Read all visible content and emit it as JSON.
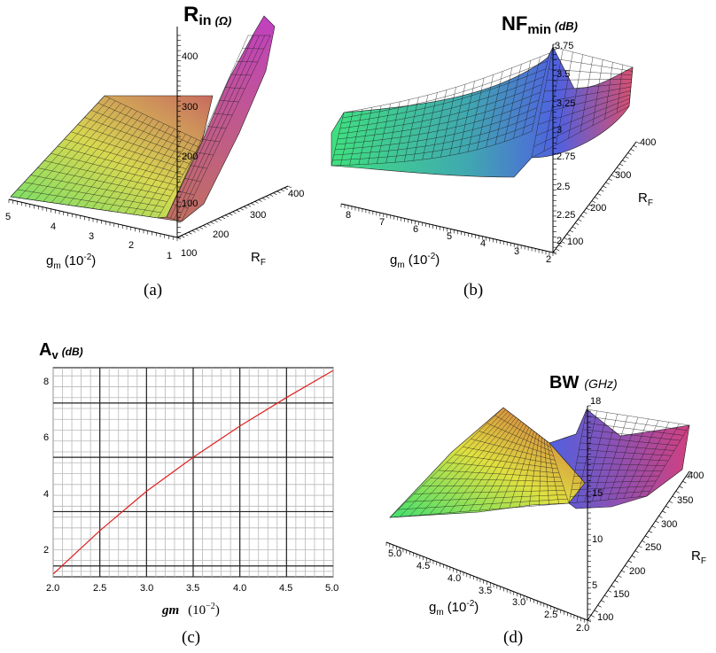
{
  "chart_data": [
    {
      "id": "a",
      "type": "surface3d",
      "title": "R",
      "title_sub": "in",
      "title_unit": "(Ω)",
      "caption": "(a)",
      "x_axis": {
        "label": "g",
        "label_sub": "m",
        "label_suffix": "(10",
        "label_sup": "-2",
        "label_close": ")",
        "ticks": [
          "5",
          "4",
          "3",
          "2",
          "1"
        ]
      },
      "y_axis": {
        "label": "R",
        "label_sub": "F",
        "ticks": [
          "100",
          "200",
          "300",
          "400"
        ]
      },
      "z_axis": {
        "ticks": [
          "100",
          "200",
          "300",
          "400"
        ]
      },
      "colors": {
        "low": "#6ee06a",
        "mid": "#d8d850",
        "high": "#c040c0"
      }
    },
    {
      "id": "b",
      "type": "surface3d",
      "title": "NF",
      "title_sub": "min",
      "title_unit": "(dB)",
      "caption": "(b)",
      "x_axis": {
        "label": "g",
        "label_sub": "m",
        "label_suffix": "(10",
        "label_sup": "-2",
        "label_close": ")",
        "ticks": [
          "8",
          "7",
          "6",
          "5",
          "4",
          "3",
          "2"
        ]
      },
      "y_axis": {
        "label": "R",
        "label_sub": "F",
        "ticks": [
          "100",
          "200",
          "300",
          "400"
        ]
      },
      "z_axis": {
        "ticks": [
          "2",
          "2.25",
          "2.5",
          "2.75",
          "3",
          "3.25",
          "3.5",
          "3.75"
        ]
      },
      "colors": {
        "low": "#50e080",
        "mid": "#6070e0",
        "high": "#d84060"
      }
    },
    {
      "id": "c",
      "type": "line",
      "title": "A",
      "title_sub": "v",
      "title_unit": "(dB)",
      "caption": "(c)",
      "xlabel": "gm",
      "xlabel_unit": "(10",
      "xlabel_sup": "−2",
      "xlabel_close": ")",
      "xlim": [
        2.0,
        5.0
      ],
      "ylim": [
        0.8,
        8.5
      ],
      "x_ticks": [
        "2.0",
        "2.5",
        "3.0",
        "3.5",
        "4.0",
        "4.5",
        "5.0"
      ],
      "y_ticks": [
        "2",
        "4",
        "6",
        "8"
      ],
      "series": [
        {
          "color": "#e02020",
          "x": [
            2.0,
            2.5,
            3.0,
            3.5,
            4.0,
            4.5,
            5.0
          ],
          "y": [
            0.9,
            2.5,
            3.95,
            5.2,
            6.35,
            7.4,
            8.4
          ]
        }
      ]
    },
    {
      "id": "d",
      "type": "surface3d",
      "title": "BW",
      "title_unit": "(GHz)",
      "caption": "(d)",
      "x_axis": {
        "label": "g",
        "label_sub": "m",
        "label_suffix": "(10",
        "label_sup": "-2",
        "label_close": ")",
        "ticks": [
          "5.0",
          "4.5",
          "4.0",
          "3.5",
          "3.0",
          "2.5",
          "2.0"
        ]
      },
      "y_axis": {
        "label": "R",
        "label_sub": "F",
        "ticks": [
          "100",
          "150",
          "200",
          "250",
          "300",
          "350",
          "400"
        ]
      },
      "z_axis": {
        "ticks": [
          "5",
          "10",
          "15",
          "18"
        ]
      },
      "colors": {
        "low": "#50e070",
        "mid": "#e0e040",
        "high": "#6060e0"
      }
    }
  ]
}
